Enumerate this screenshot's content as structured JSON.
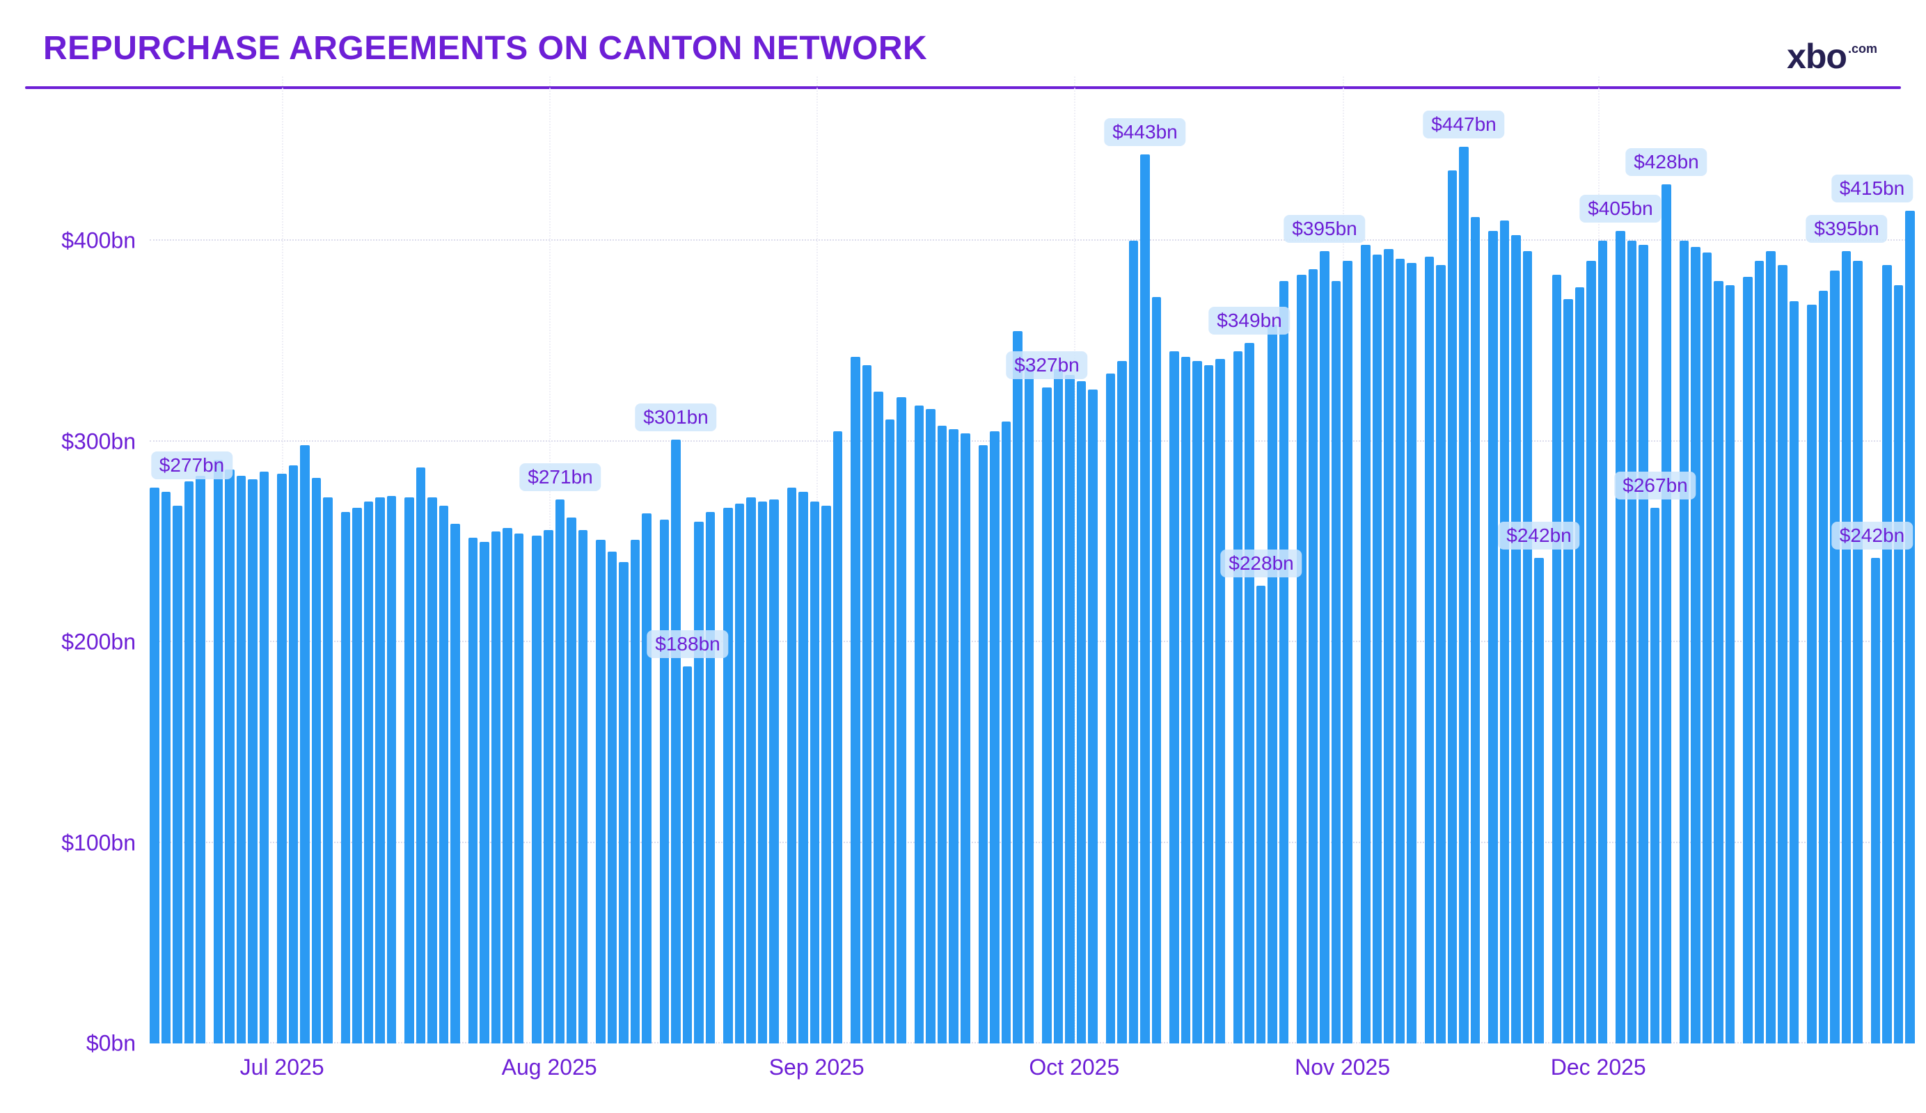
{
  "header": {
    "title": "REPURCHASE ARGEEMENTS ON CANTON NETWORK",
    "logo_text": "xbo",
    "logo_suffix": ".com"
  },
  "colors": {
    "accent_purple": "#6d1fd6",
    "bar_blue": "#2b9af3",
    "annotation_pill": "#cfe6fb",
    "logo_navy": "#262052",
    "gridline": "#dcdcec"
  },
  "chart_data": {
    "type": "bar",
    "title": "REPURCHASE ARGEEMENTS ON CANTON NETWORK",
    "xlabel": "",
    "ylabel": "",
    "y_ticks": [
      "$0bn",
      "$100bn",
      "$200bn",
      "$300bn",
      "$400bn"
    ],
    "y_tick_values": [
      0,
      100,
      200,
      300,
      400
    ],
    "ylim": [
      0,
      468
    ],
    "grid": "dotted",
    "legend": "none",
    "bar_group_size": 5,
    "x_month_labels": [
      "Jul 2025",
      "Aug 2025",
      "Sep 2025",
      "Oct 2025",
      "Nov 2025",
      "Dec 2025"
    ],
    "x_month_positions_pct": [
      7.5,
      22.65,
      37.8,
      52.4,
      67.6,
      82.1
    ],
    "values": [
      277,
      275,
      268,
      280,
      283,
      291,
      286,
      283,
      281,
      285,
      284,
      288,
      298,
      282,
      272,
      265,
      267,
      270,
      272,
      273,
      272,
      287,
      272,
      268,
      259,
      252,
      250,
      255,
      257,
      254,
      253,
      256,
      271,
      262,
      256,
      251,
      245,
      240,
      251,
      264,
      261,
      301,
      188,
      260,
      265,
      267,
      269,
      272,
      270,
      271,
      277,
      275,
      270,
      268,
      305,
      342,
      338,
      325,
      311,
      322,
      318,
      316,
      308,
      306,
      304,
      298,
      305,
      310,
      355,
      338,
      327,
      336,
      333,
      330,
      326,
      334,
      340,
      400,
      443,
      372,
      345,
      342,
      340,
      338,
      341,
      345,
      349,
      228,
      358,
      380,
      383,
      386,
      395,
      380,
      390,
      398,
      393,
      396,
      391,
      389,
      392,
      388,
      435,
      447,
      412,
      405,
      410,
      403,
      395,
      242,
      383,
      371,
      377,
      390,
      400,
      405,
      400,
      398,
      267,
      428,
      400,
      397,
      394,
      380,
      378,
      382,
      390,
      395,
      388,
      370,
      368,
      375,
      385,
      395,
      390,
      242,
      388,
      378,
      415
    ],
    "annotations": [
      {
        "index": 0,
        "label": "$277bn"
      },
      {
        "index": 32,
        "label": "$271bn"
      },
      {
        "index": 41,
        "label": "$301bn"
      },
      {
        "index": 42,
        "label": "$188bn"
      },
      {
        "index": 70,
        "label": "$327bn"
      },
      {
        "index": 78,
        "label": "$443bn"
      },
      {
        "index": 86,
        "label": "$349bn"
      },
      {
        "index": 87,
        "label": "$228bn"
      },
      {
        "index": 92,
        "label": "$395bn"
      },
      {
        "index": 103,
        "label": "$447bn"
      },
      {
        "index": 109,
        "label": "$242bn"
      },
      {
        "index": 115,
        "label": "$405bn"
      },
      {
        "index": 118,
        "label": "$267bn"
      },
      {
        "index": 119,
        "label": "$428bn"
      },
      {
        "index": 133,
        "label": "$395bn"
      },
      {
        "index": 135,
        "label": "$242bn"
      },
      {
        "index": 138,
        "label": "$415bn"
      }
    ]
  }
}
